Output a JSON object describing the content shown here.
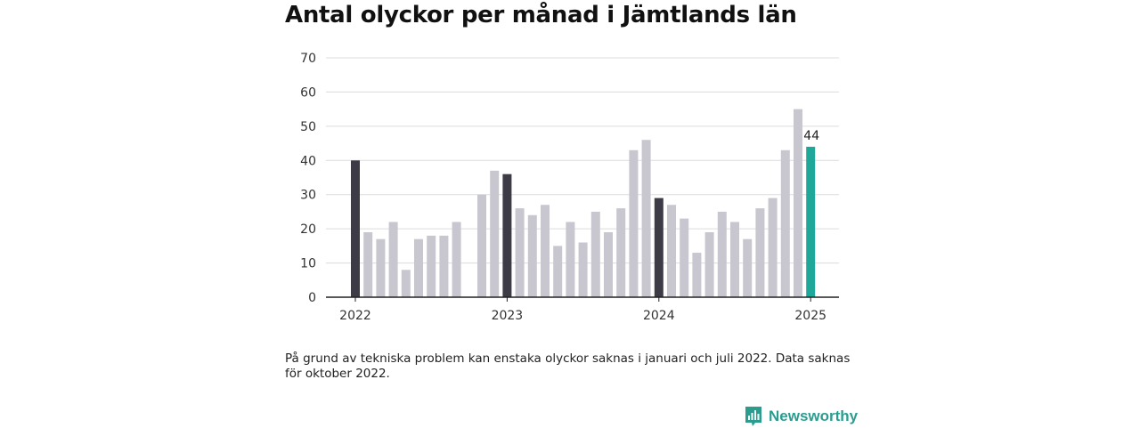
{
  "title": "Antal olyckor per månad i Jämtlands län",
  "note": "På grund av tekniska problem kan enstaka olyckor saknas i januari och juli 2022. Data saknas för oktober 2022.",
  "brand": "Newsworthy",
  "colors": {
    "highlight": "#3d3b45",
    "regular": "#c8c7cf",
    "latest": "#1fa89a",
    "grid": "#dcdcdc",
    "axis": "#222222"
  },
  "chart_data": {
    "type": "bar",
    "x_tick_labels": [
      "2022",
      "2023",
      "2024",
      "2025"
    ],
    "ylim": [
      0,
      70
    ],
    "y_ticks": [
      0,
      10,
      20,
      30,
      40,
      50,
      60,
      70
    ],
    "grid": true,
    "months": [
      "2022-01",
      "2022-02",
      "2022-03",
      "2022-04",
      "2022-05",
      "2022-06",
      "2022-07",
      "2022-08",
      "2022-09",
      "2022-10",
      "2022-11",
      "2022-12",
      "2023-01",
      "2023-02",
      "2023-03",
      "2023-04",
      "2023-05",
      "2023-06",
      "2023-07",
      "2023-08",
      "2023-09",
      "2023-10",
      "2023-11",
      "2023-12",
      "2024-01",
      "2024-02",
      "2024-03",
      "2024-04",
      "2024-05",
      "2024-06",
      "2024-07",
      "2024-08",
      "2024-09",
      "2024-10",
      "2024-11",
      "2024-12",
      "2025-01"
    ],
    "values": [
      40,
      19,
      17,
      22,
      8,
      17,
      18,
      18,
      22,
      null,
      30,
      37,
      36,
      26,
      24,
      27,
      15,
      22,
      16,
      25,
      19,
      26,
      43,
      46,
      29,
      27,
      23,
      13,
      19,
      25,
      22,
      17,
      26,
      29,
      43,
      55,
      44
    ],
    "labeled_value": "44"
  }
}
